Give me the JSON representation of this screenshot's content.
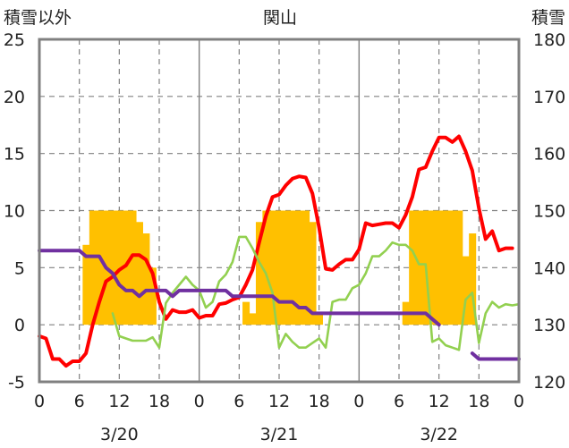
{
  "chart_data": {
    "type": "bar+line",
    "title": "関山",
    "left_axis_label": "積雪以外",
    "right_axis_label": "積雪",
    "left_ylim": [
      -5,
      25
    ],
    "left_yticks": [
      "25",
      "20",
      "15",
      "10",
      "5",
      "0",
      "-5"
    ],
    "right_ylim": [
      120,
      180
    ],
    "right_yticks": [
      "180",
      "170",
      "160",
      "150",
      "140",
      "130",
      "120"
    ],
    "x_tick_labels": [
      "0",
      "6",
      "12",
      "18",
      "0",
      "6",
      "12",
      "18",
      "0",
      "6",
      "12",
      "18",
      "0"
    ],
    "date_labels": [
      "3/20",
      "3/21",
      "3/22"
    ],
    "grid": "dashed at 6h / 10 units; solid at day boundaries",
    "colors": {
      "bar": "#ffc000",
      "red": "#ff0000",
      "green": "#92d050",
      "purple": "#7030a0",
      "frame": "#808080"
    },
    "bars": [
      {
        "hour": 7,
        "value": 7
      },
      {
        "hour": 8,
        "value": 10
      },
      {
        "hour": 9,
        "value": 10
      },
      {
        "hour": 10,
        "value": 10
      },
      {
        "hour": 11,
        "value": 10
      },
      {
        "hour": 12,
        "value": 10
      },
      {
        "hour": 13,
        "value": 10
      },
      {
        "hour": 14,
        "value": 10
      },
      {
        "hour": 15,
        "value": 9
      },
      {
        "hour": 16,
        "value": 8
      },
      {
        "hour": 17,
        "value": 5
      },
      {
        "hour": 31,
        "value": 2
      },
      {
        "hour": 32,
        "value": 1
      },
      {
        "hour": 33,
        "value": 9
      },
      {
        "hour": 34,
        "value": 10
      },
      {
        "hour": 35,
        "value": 10
      },
      {
        "hour": 36,
        "value": 10
      },
      {
        "hour": 37,
        "value": 10
      },
      {
        "hour": 38,
        "value": 10
      },
      {
        "hour": 39,
        "value": 10
      },
      {
        "hour": 40,
        "value": 10
      },
      {
        "hour": 41,
        "value": 9
      },
      {
        "hour": 42,
        "value": 1
      },
      {
        "hour": 55,
        "value": 2
      },
      {
        "hour": 56,
        "value": 10
      },
      {
        "hour": 57,
        "value": 10
      },
      {
        "hour": 58,
        "value": 10
      },
      {
        "hour": 59,
        "value": 10
      },
      {
        "hour": 60,
        "value": 10
      },
      {
        "hour": 61,
        "value": 10
      },
      {
        "hour": 62,
        "value": 10
      },
      {
        "hour": 63,
        "value": 10
      },
      {
        "hour": 64,
        "value": 6
      },
      {
        "hour": 65,
        "value": 8
      }
    ],
    "series": [
      {
        "color": "red",
        "axis": "left",
        "values": [
          [
            0,
            -1
          ],
          [
            1,
            -1.2
          ],
          [
            2,
            -3
          ],
          [
            3,
            -3
          ],
          [
            4,
            -3.6
          ],
          [
            5,
            -3.2
          ],
          [
            6,
            -3.2
          ],
          [
            7,
            -2.5
          ],
          [
            8,
            0
          ],
          [
            9,
            2
          ],
          [
            10,
            3.8
          ],
          [
            11,
            4.2
          ],
          [
            12,
            4.8
          ],
          [
            13,
            5.2
          ],
          [
            14,
            6.1
          ],
          [
            15,
            6.1
          ],
          [
            16,
            5.7
          ],
          [
            17,
            4.5
          ],
          [
            18,
            2
          ],
          [
            19,
            0.5
          ],
          [
            20,
            1.3
          ],
          [
            21,
            1.1
          ],
          [
            22,
            1.1
          ],
          [
            23,
            1.3
          ],
          [
            24,
            0.6
          ],
          [
            25,
            0.8
          ],
          [
            26,
            0.8
          ],
          [
            27,
            1.8
          ],
          [
            28,
            1.9
          ],
          [
            29,
            2.2
          ],
          [
            30,
            2.4
          ],
          [
            31,
            3.5
          ],
          [
            32,
            4.8
          ],
          [
            33,
            7.2
          ],
          [
            34,
            9.5
          ],
          [
            35,
            11.2
          ],
          [
            36,
            11.4
          ],
          [
            37,
            12.2
          ],
          [
            38,
            12.8
          ],
          [
            39,
            13
          ],
          [
            40,
            12.9
          ],
          [
            41,
            11.5
          ],
          [
            42,
            8.5
          ],
          [
            43,
            4.9
          ],
          [
            44,
            4.8
          ],
          [
            45,
            5.3
          ],
          [
            46,
            5.7
          ],
          [
            47,
            5.7
          ],
          [
            48,
            6.6
          ],
          [
            49,
            8.9
          ],
          [
            50,
            8.7
          ],
          [
            51,
            8.8
          ],
          [
            52,
            8.9
          ],
          [
            53,
            8.9
          ],
          [
            54,
            8.5
          ],
          [
            55,
            9.6
          ],
          [
            56,
            11.2
          ],
          [
            57,
            13.6
          ],
          [
            58,
            13.8
          ],
          [
            59,
            15.2
          ],
          [
            60,
            16.4
          ],
          [
            61,
            16.4
          ],
          [
            62,
            16
          ],
          [
            63,
            16.5
          ],
          [
            64,
            15.2
          ],
          [
            65,
            13.5
          ],
          [
            66,
            10.2
          ],
          [
            67,
            7.5
          ],
          [
            68,
            8.2
          ],
          [
            69,
            6.5
          ],
          [
            70,
            6.7
          ],
          [
            71,
            6.7
          ]
        ]
      },
      {
        "color": "green",
        "axis": "left",
        "values": [
          [
            11,
            1
          ],
          [
            12,
            -1
          ],
          [
            13,
            -1.2
          ],
          [
            14,
            -1.4
          ],
          [
            15,
            -1.4
          ],
          [
            16,
            -1.4
          ],
          [
            17,
            -1.1
          ],
          [
            18,
            -2
          ],
          [
            19,
            1.9
          ],
          [
            20,
            2.8
          ],
          [
            21,
            3.5
          ],
          [
            22,
            4.2
          ],
          [
            23,
            3.5
          ],
          [
            24,
            3
          ],
          [
            25,
            1.5
          ],
          [
            26,
            2
          ],
          [
            27,
            3.8
          ],
          [
            28,
            4.4
          ],
          [
            29,
            5.5
          ],
          [
            30,
            7.7
          ],
          [
            31,
            7.7
          ],
          [
            32,
            6.7
          ],
          [
            33,
            5.5
          ],
          [
            34,
            4.5
          ],
          [
            35,
            2.8
          ],
          [
            36,
            -2
          ],
          [
            37,
            -0.8
          ],
          [
            38,
            -1.5
          ],
          [
            39,
            -2
          ],
          [
            40,
            -2
          ],
          [
            41,
            -1.6
          ],
          [
            42,
            -1.2
          ],
          [
            43,
            -2
          ],
          [
            44,
            2
          ],
          [
            45,
            2.2
          ],
          [
            46,
            2.2
          ],
          [
            47,
            3.2
          ],
          [
            48,
            3.5
          ],
          [
            49,
            4.5
          ],
          [
            50,
            6
          ],
          [
            51,
            6
          ],
          [
            52,
            6.5
          ],
          [
            53,
            7.2
          ],
          [
            54,
            7
          ],
          [
            55,
            7
          ],
          [
            56,
            6.5
          ],
          [
            57,
            5.3
          ],
          [
            58,
            5.3
          ],
          [
            59,
            -1.5
          ],
          [
            60,
            -1.2
          ],
          [
            61,
            -1.8
          ],
          [
            62,
            -2
          ],
          [
            63,
            -2.2
          ],
          [
            64,
            2.2
          ],
          [
            65,
            2.8
          ],
          [
            66,
            -1.6
          ],
          [
            67,
            1
          ],
          [
            68,
            2
          ],
          [
            69,
            1.5
          ],
          [
            70,
            1.8
          ],
          [
            71,
            1.7
          ],
          [
            72,
            1.8
          ]
        ]
      },
      {
        "color": "purple",
        "axis": "right",
        "values": [
          [
            0,
            143
          ],
          [
            1,
            143
          ],
          [
            2,
            143
          ],
          [
            3,
            143
          ],
          [
            4,
            143
          ],
          [
            5,
            143
          ],
          [
            6,
            143
          ],
          [
            7,
            142
          ],
          [
            8,
            142
          ],
          [
            9,
            142
          ],
          [
            10,
            140
          ],
          [
            11,
            139
          ],
          [
            12,
            137
          ],
          [
            13,
            136
          ],
          [
            14,
            136
          ],
          [
            15,
            135
          ],
          [
            16,
            136
          ],
          [
            17,
            136
          ],
          [
            18,
            136
          ],
          [
            19,
            136
          ],
          [
            20,
            135
          ],
          [
            21,
            136
          ],
          [
            22,
            136
          ],
          [
            23,
            136
          ],
          [
            24,
            136
          ],
          [
            25,
            136
          ],
          [
            26,
            136
          ],
          [
            27,
            136
          ],
          [
            28,
            136
          ],
          [
            29,
            135
          ],
          [
            30,
            135
          ],
          [
            31,
            135
          ],
          [
            32,
            135
          ],
          [
            33,
            135
          ],
          [
            34,
            135
          ],
          [
            35,
            135
          ],
          [
            36,
            134
          ],
          [
            37,
            134
          ],
          [
            38,
            134
          ],
          [
            39,
            133
          ],
          [
            40,
            133
          ],
          [
            41,
            132
          ],
          [
            42,
            132
          ],
          [
            43,
            132
          ],
          [
            44,
            132
          ],
          [
            45,
            132
          ],
          [
            46,
            132
          ],
          [
            47,
            132
          ],
          [
            48,
            132
          ],
          [
            49,
            132
          ],
          [
            50,
            132
          ],
          [
            51,
            132
          ],
          [
            52,
            132
          ],
          [
            53,
            132
          ],
          [
            54,
            132
          ],
          [
            55,
            132
          ],
          [
            56,
            132
          ],
          [
            57,
            132
          ],
          [
            58,
            132
          ],
          [
            59,
            131
          ],
          [
            60,
            130
          ],
          [
            61,
            null
          ],
          [
            62,
            null
          ],
          [
            63,
            null
          ],
          [
            64,
            null
          ],
          [
            65,
            125
          ],
          [
            66,
            124
          ],
          [
            67,
            124
          ],
          [
            68,
            124
          ],
          [
            69,
            124
          ],
          [
            70,
            124
          ],
          [
            71,
            124
          ],
          [
            72,
            124
          ]
        ]
      }
    ]
  }
}
